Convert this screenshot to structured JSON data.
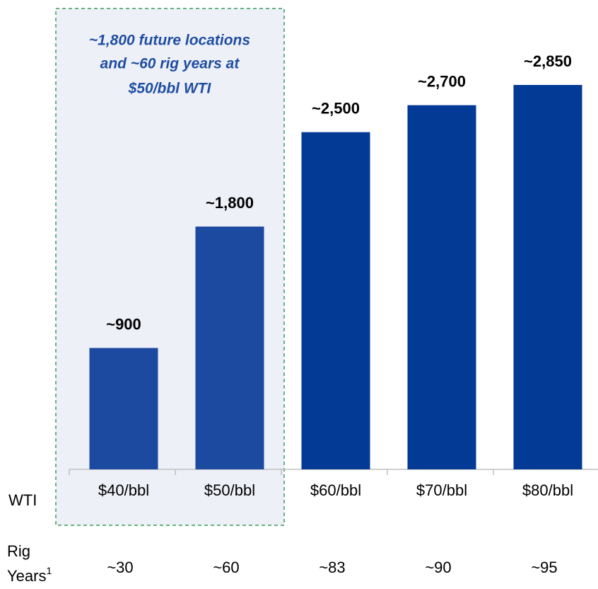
{
  "chart_data": {
    "type": "bar",
    "annotation": [
      "~1,800 future locations",
      "and ~60 rig years at",
      "$50/bbl WTI"
    ],
    "row_label": "WTI",
    "categories": [
      "$40/bbl",
      "$50/bbl",
      "$60/bbl",
      "$70/bbl",
      "$80/bbl"
    ],
    "values": [
      900,
      1800,
      2500,
      2700,
      2850
    ],
    "value_labels": [
      "~900",
      "~1,800",
      "~2,500",
      "~2,700",
      "~2,850"
    ],
    "colors": [
      "#1c4aa0",
      "#1c4aa0",
      "#023a96",
      "#023a96",
      "#023a96"
    ],
    "rig_years": {
      "label": [
        "Rig",
        "Years"
      ],
      "footnote": "1",
      "values": [
        "~30",
        "~60",
        "~83",
        "~90",
        "~95"
      ]
    }
  }
}
